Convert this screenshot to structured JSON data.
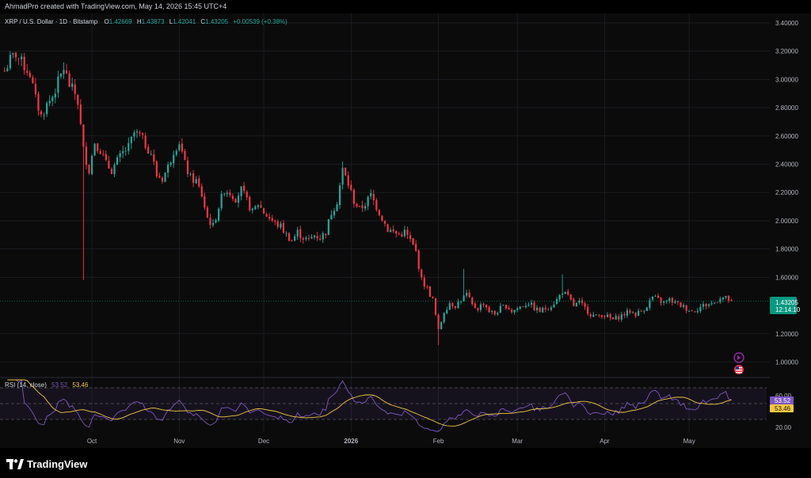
{
  "header": {
    "caption": "AhmadPro created with TradingView.com, May 14, 2026 15:45 UTC+4"
  },
  "legend": {
    "symbol": "XRP / U.S. Dollar · 1D · Bitstamp",
    "open_label": "O",
    "open": "1.42669",
    "high_label": "H",
    "high": "1.43873",
    "low_label": "L",
    "low": "1.42041",
    "close_label": "C",
    "close": "1.43205",
    "change": "+0.00539 (+0.38%)"
  },
  "price_label": {
    "value": "1.43205",
    "countdown": "12:14:10"
  },
  "rsi": {
    "label": "RSI (14, close)",
    "value": "53.52",
    "ma_value": "53.46",
    "value_badge": "53.52",
    "ma_badge": "53.46"
  },
  "footer": {
    "logo_text": "TradingView"
  },
  "colors": {
    "up": "#26a69a",
    "down": "#f23645",
    "rsi_line": "#7e57c2",
    "rsi_ma": "#f5c842",
    "price_badge": "#089981",
    "background": "#0b0b0b"
  },
  "chart_data": {
    "type": "candlestick",
    "title": "XRP / U.S. Dollar · 1D · Bitstamp",
    "price_axis": {
      "ticks": [
        "3.40000",
        "3.20000",
        "3.00000",
        "2.80000",
        "2.60000",
        "2.40000",
        "2.20000",
        "2.00000",
        "1.80000",
        "1.60000",
        "1.20000",
        "1.00000"
      ],
      "ylim": [
        0.93,
        3.45
      ]
    },
    "time_axis": {
      "labels": [
        "Oct",
        "Nov",
        "Dec",
        "2026",
        "Feb",
        "Mar",
        "Apr",
        "May"
      ],
      "label_day_index": [
        31,
        62,
        92,
        123,
        154,
        182,
        213,
        243
      ]
    },
    "last_price": 1.43205,
    "anchors": [
      [
        0,
        3.06
      ],
      [
        2,
        3.14
      ],
      [
        4,
        3.18
      ],
      [
        6,
        3.12
      ],
      [
        9,
        3.04
      ],
      [
        11,
        2.86
      ],
      [
        13,
        2.74
      ],
      [
        15,
        2.82
      ],
      [
        17,
        2.88
      ],
      [
        19,
        2.98
      ],
      [
        21,
        3.08
      ],
      [
        23,
        2.96
      ],
      [
        25,
        2.9
      ],
      [
        26,
        2.84
      ],
      [
        28,
        2.5
      ],
      [
        30,
        2.36
      ],
      [
        32,
        2.56
      ],
      [
        34,
        2.5
      ],
      [
        36,
        2.4
      ],
      [
        38,
        2.36
      ],
      [
        40,
        2.42
      ],
      [
        42,
        2.48
      ],
      [
        44,
        2.52
      ],
      [
        46,
        2.62
      ],
      [
        48,
        2.6
      ],
      [
        50,
        2.54
      ],
      [
        52,
        2.48
      ],
      [
        54,
        2.32
      ],
      [
        56,
        2.3
      ],
      [
        58,
        2.38
      ],
      [
        60,
        2.5
      ],
      [
        62,
        2.56
      ],
      [
        64,
        2.4
      ],
      [
        66,
        2.3
      ],
      [
        68,
        2.28
      ],
      [
        70,
        2.18
      ],
      [
        72,
        2.02
      ],
      [
        74,
        1.96
      ],
      [
        76,
        2.1
      ],
      [
        78,
        2.22
      ],
      [
        80,
        2.2
      ],
      [
        82,
        2.16
      ],
      [
        84,
        2.22
      ],
      [
        86,
        2.14
      ],
      [
        88,
        2.06
      ],
      [
        90,
        2.12
      ],
      [
        92,
        2.06
      ],
      [
        94,
        2.02
      ],
      [
        96,
        1.98
      ],
      [
        98,
        1.96
      ],
      [
        100,
        1.9
      ],
      [
        102,
        1.86
      ],
      [
        104,
        1.92
      ],
      [
        106,
        1.88
      ],
      [
        108,
        1.86
      ],
      [
        110,
        1.9
      ],
      [
        112,
        1.88
      ],
      [
        114,
        1.92
      ],
      [
        116,
        2.06
      ],
      [
        118,
        2.14
      ],
      [
        120,
        2.36
      ],
      [
        122,
        2.26
      ],
      [
        124,
        2.14
      ],
      [
        126,
        2.08
      ],
      [
        128,
        2.12
      ],
      [
        130,
        2.18
      ],
      [
        132,
        2.1
      ],
      [
        134,
        2.02
      ],
      [
        136,
        1.94
      ],
      [
        138,
        1.92
      ],
      [
        140,
        1.9
      ],
      [
        142,
        1.92
      ],
      [
        144,
        1.86
      ],
      [
        146,
        1.78
      ],
      [
        148,
        1.58
      ],
      [
        150,
        1.52
      ],
      [
        152,
        1.44
      ],
      [
        154,
        1.22
      ],
      [
        156,
        1.36
      ],
      [
        158,
        1.42
      ],
      [
        160,
        1.4
      ],
      [
        162,
        1.44
      ],
      [
        164,
        1.48
      ],
      [
        166,
        1.4
      ],
      [
        168,
        1.38
      ],
      [
        170,
        1.42
      ],
      [
        172,
        1.36
      ],
      [
        174,
        1.34
      ],
      [
        176,
        1.38
      ],
      [
        178,
        1.4
      ],
      [
        180,
        1.36
      ],
      [
        182,
        1.38
      ],
      [
        184,
        1.4
      ],
      [
        186,
        1.42
      ],
      [
        188,
        1.38
      ],
      [
        190,
        1.36
      ],
      [
        192,
        1.38
      ],
      [
        194,
        1.4
      ],
      [
        196,
        1.44
      ],
      [
        198,
        1.5
      ],
      [
        200,
        1.46
      ],
      [
        202,
        1.4
      ],
      [
        204,
        1.42
      ],
      [
        206,
        1.38
      ],
      [
        208,
        1.34
      ],
      [
        210,
        1.32
      ],
      [
        212,
        1.34
      ],
      [
        214,
        1.32
      ],
      [
        216,
        1.3
      ],
      [
        218,
        1.32
      ],
      [
        220,
        1.34
      ],
      [
        222,
        1.36
      ],
      [
        224,
        1.34
      ],
      [
        226,
        1.36
      ],
      [
        228,
        1.4
      ],
      [
        230,
        1.46
      ],
      [
        232,
        1.44
      ],
      [
        234,
        1.42
      ],
      [
        236,
        1.44
      ],
      [
        238,
        1.42
      ],
      [
        240,
        1.4
      ],
      [
        242,
        1.38
      ],
      [
        244,
        1.36
      ],
      [
        246,
        1.38
      ],
      [
        248,
        1.4
      ],
      [
        250,
        1.41
      ],
      [
        252,
        1.42
      ],
      [
        254,
        1.46
      ],
      [
        256,
        1.45
      ],
      [
        258,
        1.43
      ]
    ],
    "rsi_axis": {
      "ticks": [
        "60.00",
        "20.00"
      ],
      "overbought": 70,
      "oversold": 30,
      "ylim": [
        15,
        80
      ]
    }
  }
}
